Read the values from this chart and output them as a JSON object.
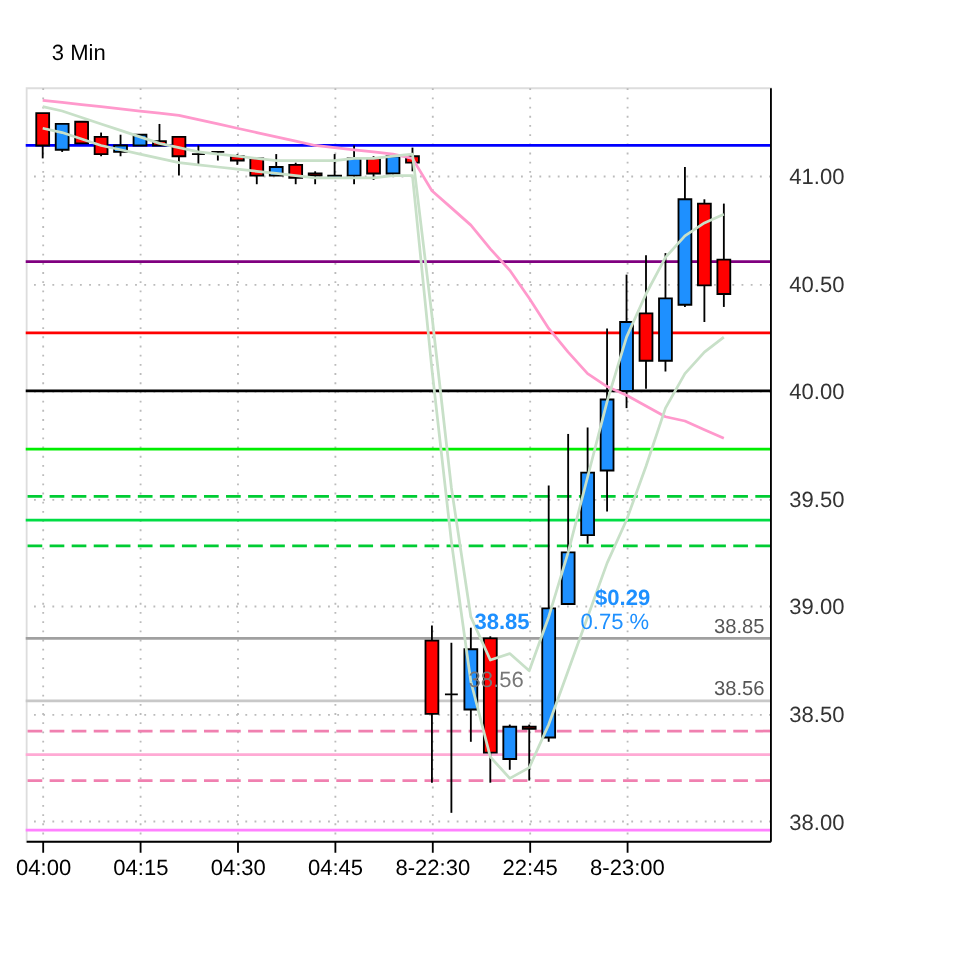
{
  "chart_data": {
    "type": "candlestick",
    "title": "3 Min",
    "categories": [
      "04:00",
      null,
      null,
      null,
      null,
      "04:15",
      null,
      null,
      null,
      null,
      "04:30",
      null,
      null,
      null,
      null,
      "04:45",
      null,
      null,
      null,
      null,
      "8-22:30",
      null,
      null,
      null,
      null,
      "22:45",
      null,
      null,
      null,
      null,
      "8-23:00",
      null,
      null,
      null,
      null,
      null
    ],
    "ohlc": [
      [
        41.29,
        41.29,
        41.08,
        41.14
      ],
      [
        41.12,
        41.24,
        41.11,
        41.24
      ],
      [
        41.25,
        41.25,
        41.15,
        41.15
      ],
      [
        41.18,
        41.2,
        41.09,
        41.1
      ],
      [
        41.11,
        41.19,
        41.09,
        41.14
      ],
      [
        41.14,
        41.19,
        41.14,
        41.19
      ],
      [
        41.16,
        41.24,
        41.14,
        41.14
      ],
      [
        41.18,
        41.18,
        41.0,
        41.09
      ],
      [
        41.1,
        41.14,
        41.05,
        41.1
      ],
      [
        41.11,
        41.11,
        41.07,
        41.11
      ],
      [
        41.09,
        41.1,
        41.05,
        41.07
      ],
      [
        41.08,
        41.08,
        40.96,
        41.0
      ],
      [
        41.0,
        41.1,
        41.0,
        41.04
      ],
      [
        41.05,
        41.06,
        40.96,
        40.99
      ],
      [
        41.01,
        41.02,
        40.96,
        41.0
      ],
      [
        40.99,
        41.1,
        40.99,
        41.0
      ],
      [
        41.0,
        41.14,
        40.96,
        41.08
      ],
      [
        41.08,
        41.09,
        40.98,
        41.01
      ],
      [
        41.01,
        41.09,
        41.0,
        41.09
      ],
      [
        41.09,
        41.13,
        41.02,
        41.06
      ],
      [
        38.84,
        38.91,
        38.18,
        38.5
      ],
      [
        38.59,
        38.83,
        38.04,
        38.59
      ],
      [
        38.52,
        38.9,
        38.37,
        38.8
      ],
      [
        38.85,
        38.86,
        38.18,
        38.32
      ],
      [
        38.29,
        38.45,
        38.24,
        38.44
      ],
      [
        38.44,
        38.45,
        38.19,
        38.43
      ],
      [
        38.39,
        39.56,
        38.37,
        38.99
      ],
      [
        39.01,
        39.8,
        39.01,
        39.25
      ],
      [
        39.33,
        39.83,
        39.29,
        39.62
      ],
      [
        39.63,
        40.29,
        39.44,
        39.96
      ],
      [
        40.0,
        40.54,
        39.92,
        40.32
      ],
      [
        40.36,
        40.63,
        40.01,
        40.14
      ],
      [
        40.14,
        40.64,
        40.09,
        40.43
      ],
      [
        40.4,
        41.04,
        40.39,
        40.89
      ],
      [
        40.87,
        40.89,
        40.32,
        40.49
      ],
      [
        40.61,
        40.87,
        40.39,
        40.45
      ]
    ],
    "colors": [
      "#ff0000",
      "#1e90ff",
      "#ff0000",
      "#ff0000",
      "#1e90ff",
      "#1e90ff",
      "#ff0000",
      "#ff0000",
      "#000000",
      "#000000",
      "#ff0000",
      "#ff0000",
      "#1e90ff",
      "#ff0000",
      "#ff0000",
      "#1e90ff",
      "#1e90ff",
      "#ff0000",
      "#1e90ff",
      "#ff0000",
      "#ff0000",
      "#000000",
      "#1e90ff",
      "#ff0000",
      "#1e90ff",
      "#ff0000",
      "#1e90ff",
      "#1e90ff",
      "#1e90ff",
      "#1e90ff",
      "#1e90ff",
      "#ff0000",
      "#1e90ff",
      "#1e90ff",
      "#ff0000",
      "#ff0000"
    ],
    "series": [
      {
        "type": "line",
        "color": "#ff99cc",
        "values": [
          41.35,
          41.34,
          41.33,
          41.32,
          41.31,
          41.3,
          41.29,
          41.28,
          41.26,
          41.24,
          41.22,
          41.2,
          41.18,
          41.16,
          41.14,
          41.13,
          41.12,
          41.11,
          41.1,
          41.08,
          40.93,
          40.85,
          40.77,
          40.66,
          40.56,
          40.43,
          40.29,
          40.18,
          40.08,
          40.02,
          39.98,
          39.93,
          39.88,
          39.86,
          39.82,
          39.78
        ]
      },
      {
        "type": "line",
        "color": "#c8e0c8",
        "values": [
          41.32,
          41.3,
          41.27,
          41.24,
          41.21,
          41.18,
          41.15,
          41.13,
          41.11,
          41.1,
          41.09,
          41.08,
          41.07,
          41.07,
          41.07,
          41.07,
          41.08,
          41.08,
          41.09,
          41.1,
          40.35,
          39.55,
          38.95,
          38.75,
          38.78,
          38.7,
          38.95,
          39.25,
          39.6,
          39.95,
          40.25,
          40.45,
          40.62,
          40.72,
          40.78,
          40.82
        ]
      },
      {
        "type": "line",
        "color": "#c8e0c8",
        "values": [
          41.22,
          41.2,
          41.17,
          41.14,
          41.12,
          41.1,
          41.08,
          41.06,
          41.05,
          41.04,
          41.03,
          41.02,
          41.01,
          41.0,
          40.99,
          40.99,
          40.99,
          40.99,
          41.0,
          41.0,
          40.1,
          39.3,
          38.65,
          38.3,
          38.2,
          38.25,
          38.45,
          38.7,
          38.95,
          39.2,
          39.4,
          39.65,
          39.92,
          40.08,
          40.18,
          40.25
        ]
      }
    ],
    "ylim": [
      37.91,
      41.41
    ],
    "yticks": [
      {
        "value": 38,
        "label": "38.00"
      },
      {
        "value": 38.5,
        "label": "38.50"
      },
      {
        "value": 39,
        "label": "39.00"
      },
      {
        "value": 39.5,
        "label": "39.50"
      },
      {
        "value": 40,
        "label": "40.00"
      },
      {
        "value": 40.5,
        "label": "40.50"
      },
      {
        "value": 41,
        "label": "41.00"
      }
    ],
    "ref_lines": [
      {
        "axis": "y",
        "value": 41.14,
        "color": "#0000ff"
      },
      {
        "axis": "y",
        "value": 40.6,
        "color": "#800080"
      },
      {
        "axis": "y",
        "value": 40.27,
        "color": "#ff0000"
      },
      {
        "axis": "y",
        "value": 40.0,
        "color": "#000000"
      },
      {
        "axis": "y",
        "value": 39.73,
        "color": "#00ee00"
      },
      {
        "axis": "y",
        "value": 39.51,
        "color": "#00cc33",
        "line_style": "dashed"
      },
      {
        "axis": "y",
        "value": 39.4,
        "color": "#00dd44"
      },
      {
        "axis": "y",
        "value": 39.28,
        "color": "#00cc33",
        "line_style": "dashed"
      },
      {
        "axis": "y",
        "value": 38.85,
        "color": "#a0a0a0",
        "label": "38.85"
      },
      {
        "axis": "y",
        "value": 38.56,
        "color": "#c8c8c8",
        "label": "38.56"
      },
      {
        "axis": "y",
        "value": 38.42,
        "color": "#f080b0",
        "line_style": "dashed"
      },
      {
        "axis": "y",
        "value": 38.31,
        "color": "#ffaad4"
      },
      {
        "axis": "y",
        "value": 38.19,
        "color": "#f080b0",
        "line_style": "dashed"
      },
      {
        "axis": "y",
        "value": 37.96,
        "color": "#ff80ff"
      }
    ],
    "annotations": [
      "38.85",
      "$0.29",
      "0.75 %",
      "38.56"
    ],
    "grid": true
  }
}
